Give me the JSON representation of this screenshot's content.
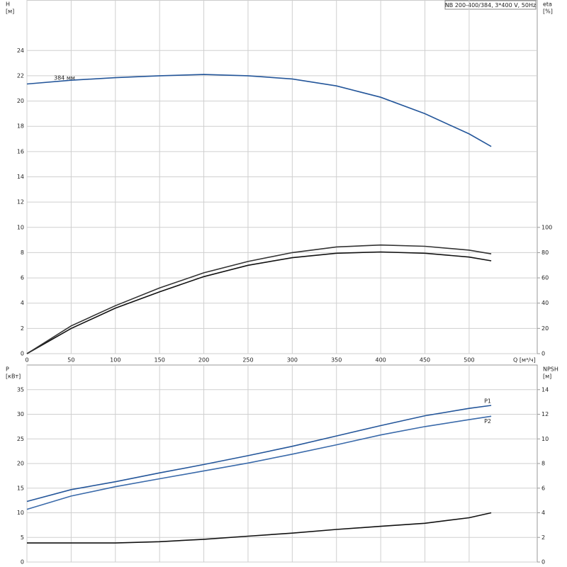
{
  "chart_data": [
    {
      "type": "line",
      "title": "NB 200-400/384, 3*400 V, 50Hz",
      "y_label": [
        "H",
        "[м]"
      ],
      "y2_label": [
        "eta",
        "[%]"
      ],
      "x_label": "Q [м³/ч]",
      "annotation": "384 мм",
      "x": [
        0,
        50,
        100,
        150,
        200,
        250,
        300,
        350,
        400,
        450,
        500,
        525
      ],
      "xlim": [
        0,
        577
      ],
      "xticks": [
        0,
        50,
        100,
        150,
        200,
        250,
        300,
        350,
        400,
        450,
        500
      ],
      "ylim": [
        0,
        28
      ],
      "yticks": [
        0,
        2,
        4,
        6,
        8,
        10,
        12,
        14,
        16,
        18,
        20,
        22,
        24
      ],
      "y2lim": [
        0,
        280
      ],
      "y2ticks": [
        0,
        20,
        40,
        60,
        80,
        100
      ],
      "grid": true,
      "series": [
        {
          "color": "#24569a",
          "values": [
            21.35,
            21.65,
            21.85,
            22.0,
            22.1,
            22.0,
            21.75,
            21.2,
            20.3,
            19.0,
            17.4,
            16.4
          ]
        },
        {
          "color": "#111111",
          "axis": "y2",
          "values": [
            0,
            20,
            36,
            49,
            61,
            70,
            76,
            79.5,
            80.5,
            79.5,
            76.5,
            73.5
          ]
        },
        {
          "color": "#333333",
          "axis": "y2",
          "values": [
            0,
            22,
            38,
            52,
            64,
            73,
            80,
            84.5,
            86,
            85,
            82,
            79
          ]
        }
      ]
    },
    {
      "type": "line",
      "y_label": [
        "P",
        "[кВт]"
      ],
      "y2_label": [
        "NPSH",
        "[м]"
      ],
      "x": [
        0,
        50,
        100,
        150,
        200,
        250,
        300,
        350,
        400,
        450,
        500,
        525
      ],
      "xlim": [
        0,
        577
      ],
      "ylim": [
        0,
        40
      ],
      "yticks": [
        0,
        5,
        10,
        15,
        20,
        25,
        30,
        35
      ],
      "y2lim": [
        0,
        16
      ],
      "y2ticks": [
        0,
        2,
        4,
        6,
        8,
        10,
        12,
        14
      ],
      "grid": true,
      "series": [
        {
          "name": "P1",
          "color": "#24569a",
          "values": [
            12.3,
            14.7,
            16.3,
            18.1,
            19.8,
            21.6,
            23.5,
            25.6,
            27.7,
            29.7,
            31.2,
            31.8
          ]
        },
        {
          "name": "P2",
          "color": "#3a6aaa",
          "values": [
            10.7,
            13.4,
            15.3,
            16.9,
            18.5,
            20.1,
            21.9,
            23.8,
            25.8,
            27.5,
            28.9,
            29.6
          ]
        },
        {
          "color": "#111111",
          "axis": "y2",
          "values": [
            1.55,
            1.55,
            1.55,
            1.65,
            1.85,
            2.1,
            2.35,
            2.65,
            2.9,
            3.15,
            3.6,
            4.0
          ]
        }
      ]
    }
  ]
}
